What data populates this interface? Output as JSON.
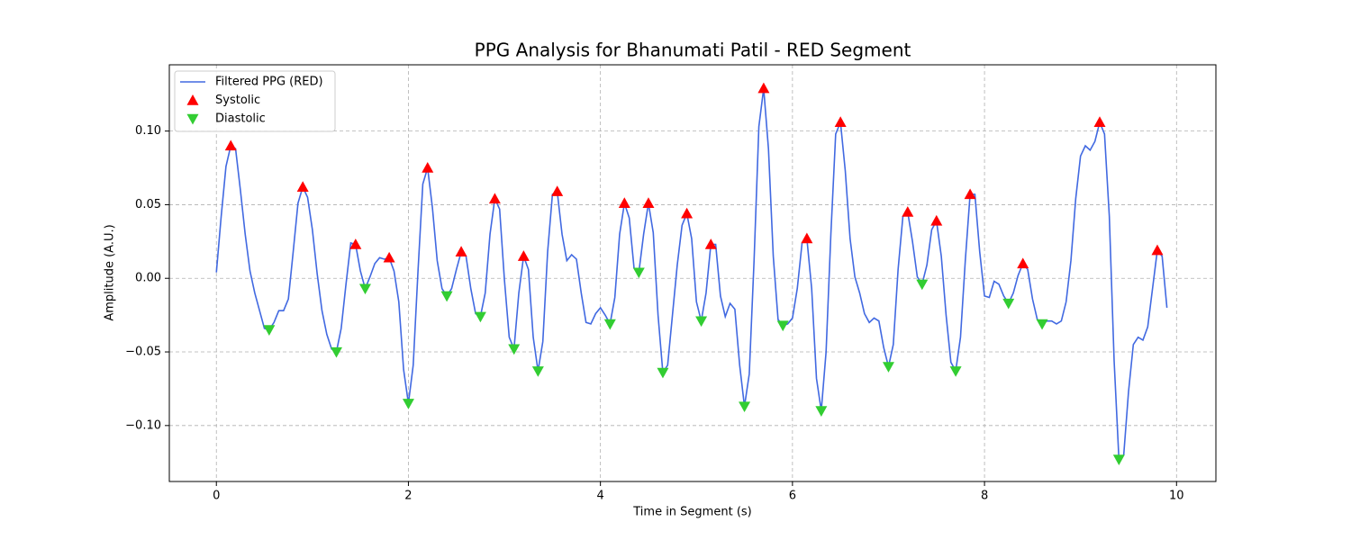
{
  "chart_data": {
    "type": "line",
    "title": "PPG Analysis for Bhanumati Patil - RED Segment",
    "xlabel": "Time in Segment (s)",
    "ylabel": "Amplitude (A.U.)",
    "xlim": [
      -0.49,
      10.41
    ],
    "ylim": [
      -0.138,
      0.145
    ],
    "xticks": [
      0,
      2,
      4,
      6,
      8,
      10
    ],
    "yticks": [
      {
        "value": -0.1,
        "label": "−0.10"
      },
      {
        "value": -0.05,
        "label": "−0.05"
      },
      {
        "value": 0,
        "label": "0.00"
      },
      {
        "value": 0.05,
        "label": "0.05"
      },
      {
        "value": 0.1,
        "label": "0.10"
      }
    ],
    "grid": true,
    "legend": "upper left",
    "series": [
      {
        "name": "Filtered PPG (RED)",
        "type": "line",
        "color": "#4169e1",
        "x": [
          0,
          0.05,
          0.1,
          0.15,
          0.2,
          0.25,
          0.3,
          0.35,
          0.4,
          0.45,
          0.5,
          0.55,
          0.6,
          0.65,
          0.7,
          0.75,
          0.8,
          0.85,
          0.9,
          0.95,
          1,
          1.05,
          1.1,
          1.15,
          1.2,
          1.25,
          1.3,
          1.35,
          1.4,
          1.45,
          1.5,
          1.55,
          1.6,
          1.65,
          1.7,
          1.75,
          1.8,
          1.85,
          1.9,
          1.95,
          2,
          2.05,
          2.1,
          2.15,
          2.2,
          2.25,
          2.3,
          2.35,
          2.4,
          2.45,
          2.5,
          2.55,
          2.6,
          2.65,
          2.7,
          2.75,
          2.8,
          2.85,
          2.9,
          2.95,
          3,
          3.05,
          3.1,
          3.15,
          3.2,
          3.25,
          3.3,
          3.35,
          3.4,
          3.45,
          3.5,
          3.55,
          3.6,
          3.65,
          3.7,
          3.75,
          3.8,
          3.85,
          3.9,
          3.95,
          4,
          4.05,
          4.1,
          4.15,
          4.2,
          4.25,
          4.3,
          4.35,
          4.4,
          4.45,
          4.5,
          4.55,
          4.6,
          4.65,
          4.7,
          4.75,
          4.8,
          4.85,
          4.9,
          4.95,
          5,
          5.05,
          5.1,
          5.15,
          5.2,
          5.25,
          5.3,
          5.35,
          5.4,
          5.45,
          5.5,
          5.55,
          5.6,
          5.65,
          5.7,
          5.75,
          5.8,
          5.85,
          5.9,
          5.95,
          6,
          6.05,
          6.1,
          6.15,
          6.2,
          6.25,
          6.3,
          6.35,
          6.4,
          6.45,
          6.5,
          6.55,
          6.6,
          6.65,
          6.7,
          6.75,
          6.8,
          6.85,
          6.9,
          6.95,
          7,
          7.05,
          7.1,
          7.15,
          7.2,
          7.25,
          7.3,
          7.35,
          7.4,
          7.45,
          7.5,
          7.55,
          7.6,
          7.65,
          7.7,
          7.75,
          7.8,
          7.85,
          7.9,
          7.95,
          8,
          8.05,
          8.1,
          8.15,
          8.2,
          8.25,
          8.3,
          8.35,
          8.4,
          8.45,
          8.5,
          8.55,
          8.6,
          8.65,
          8.7,
          8.75,
          8.8,
          8.85,
          8.9,
          8.95,
          9,
          9.05,
          9.1,
          9.15,
          9.2,
          9.25,
          9.3,
          9.35,
          9.4,
          9.45,
          9.5,
          9.55,
          9.6,
          9.65,
          9.7,
          9.75,
          9.8,
          9.85,
          9.9
        ],
        "values": [
          0.004,
          0.042,
          0.076,
          0.09,
          0.088,
          0.06,
          0.03,
          0.005,
          -0.01,
          -0.022,
          -0.034,
          -0.035,
          -0.03,
          -0.022,
          -0.022,
          -0.014,
          0.018,
          0.051,
          0.062,
          0.055,
          0.033,
          0.003,
          -0.022,
          -0.038,
          -0.048,
          -0.05,
          -0.034,
          -0.004,
          0.024,
          0.023,
          0.005,
          -0.007,
          0.001,
          0.01,
          0.014,
          0.013,
          0.014,
          0.005,
          -0.016,
          -0.062,
          -0.085,
          -0.059,
          0.005,
          0.064,
          0.075,
          0.048,
          0.012,
          -0.007,
          -0.012,
          -0.007,
          0.006,
          0.018,
          0.015,
          -0.007,
          -0.024,
          -0.026,
          -0.01,
          0.03,
          0.054,
          0.047,
          -0.001,
          -0.04,
          -0.048,
          -0.01,
          0.015,
          0.006,
          -0.04,
          -0.063,
          -0.043,
          0.018,
          0.057,
          0.059,
          0.03,
          0.012,
          0.016,
          0.013,
          -0.01,
          -0.03,
          -0.031,
          -0.024,
          -0.02,
          -0.025,
          -0.031,
          -0.013,
          0.03,
          0.051,
          0.041,
          0.007,
          0.004,
          0.03,
          0.051,
          0.031,
          -0.025,
          -0.064,
          -0.059,
          -0.025,
          0.009,
          0.036,
          0.044,
          0.027,
          -0.016,
          -0.029,
          -0.01,
          0.023,
          0.023,
          -0.012,
          -0.026,
          -0.017,
          -0.021,
          -0.059,
          -0.087,
          -0.065,
          0.012,
          0.103,
          0.129,
          0.088,
          0.015,
          -0.028,
          -0.032,
          -0.031,
          -0.027,
          -0.007,
          0.024,
          0.027,
          -0.007,
          -0.068,
          -0.09,
          -0.05,
          0.03,
          0.098,
          0.106,
          0.073,
          0.027,
          0.001,
          -0.01,
          -0.024,
          -0.03,
          -0.027,
          -0.029,
          -0.047,
          -0.06,
          -0.045,
          0.006,
          0.042,
          0.045,
          0.025,
          0.001,
          -0.004,
          0.009,
          0.033,
          0.039,
          0.015,
          -0.025,
          -0.057,
          -0.063,
          -0.04,
          0.012,
          0.057,
          0.057,
          0.018,
          -0.012,
          -0.013,
          -0.002,
          -0.004,
          -0.012,
          -0.017,
          -0.01,
          0.002,
          0.01,
          0.006,
          -0.014,
          -0.028,
          -0.031,
          -0.029,
          -0.029,
          -0.031,
          -0.029,
          -0.016,
          0.012,
          0.054,
          0.083,
          0.09,
          0.087,
          0.093,
          0.106,
          0.098,
          0.042,
          -0.056,
          -0.123,
          -0.12,
          -0.077,
          -0.045,
          -0.04,
          -0.042,
          -0.033,
          -0.007,
          0.019,
          0.015,
          -0.02
        ]
      },
      {
        "name": "Systolic",
        "type": "scatter",
        "marker": "up",
        "color": "#ff0000",
        "x": [
          0.15,
          0.9,
          1.45,
          1.8,
          2.2,
          2.55,
          2.9,
          3.2,
          3.55,
          4.25,
          4.5,
          4.9,
          5.15,
          5.7,
          6.15,
          6.5,
          7.2,
          7.5,
          7.85,
          8.4,
          9.2,
          9.8
        ],
        "values": [
          0.09,
          0.062,
          0.023,
          0.014,
          0.075,
          0.018,
          0.054,
          0.015,
          0.059,
          0.051,
          0.051,
          0.044,
          0.023,
          0.129,
          0.027,
          0.106,
          0.045,
          0.039,
          0.057,
          0.01,
          0.106,
          0.019
        ]
      },
      {
        "name": "Diastolic",
        "type": "scatter",
        "marker": "down",
        "color": "#32cd32",
        "x": [
          0.55,
          1.25,
          1.55,
          2,
          2.4,
          2.75,
          3.1,
          3.35,
          4.1,
          4.4,
          4.65,
          5.05,
          5.5,
          5.9,
          6.3,
          7,
          7.35,
          7.7,
          8.25,
          8.6,
          9.4
        ],
        "values": [
          -0.035,
          -0.05,
          -0.007,
          -0.085,
          -0.012,
          -0.026,
          -0.048,
          -0.063,
          -0.031,
          0.004,
          -0.064,
          -0.029,
          -0.087,
          -0.032,
          -0.09,
          -0.06,
          -0.004,
          -0.063,
          -0.017,
          -0.031,
          -0.123
        ]
      }
    ]
  }
}
